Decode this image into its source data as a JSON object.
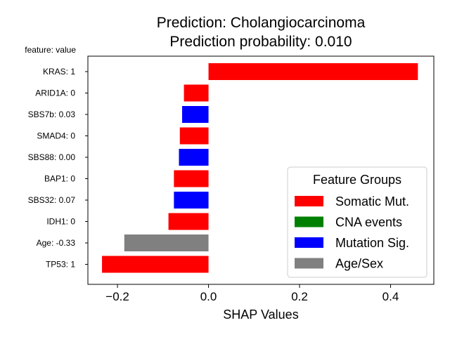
{
  "chart_data": {
    "type": "bar",
    "orientation": "horizontal",
    "title": "Prediction: Cholangiocarcinoma",
    "subtitle": "Prediction probability: 0.010",
    "ylabel_header": "feature: value",
    "xlabel": "SHAP Values",
    "xlim": [
      -0.265,
      0.495
    ],
    "xticks": [
      -0.2,
      0.0,
      0.2,
      0.4
    ],
    "xtick_labels": [
      "−0.2",
      "0.0",
      "0.2",
      "0.4"
    ],
    "grid": false,
    "legend_position": "lower-right",
    "bars": [
      {
        "label": "KRAS: 1",
        "value": 0.46,
        "group": "Somatic Mut."
      },
      {
        "label": "ARID1A: 0",
        "value": -0.054,
        "group": "Somatic Mut."
      },
      {
        "label": "SBS7b: 0.03",
        "value": -0.058,
        "group": "Mutation Sig."
      },
      {
        "label": "SMAD4: 0",
        "value": -0.063,
        "group": "Somatic Mut."
      },
      {
        "label": "SBS88: 0.00",
        "value": -0.065,
        "group": "Mutation Sig."
      },
      {
        "label": "BAP1: 0",
        "value": -0.076,
        "group": "Somatic Mut."
      },
      {
        "label": "SBS32: 0.07",
        "value": -0.076,
        "group": "Mutation Sig."
      },
      {
        "label": "IDH1: 0",
        "value": -0.088,
        "group": "Somatic Mut."
      },
      {
        "label": "Age: -0.33",
        "value": -0.185,
        "group": "Age/Sex"
      },
      {
        "label": "TP53: 1",
        "value": -0.234,
        "group": "Somatic Mut."
      }
    ],
    "legend": {
      "title": "Feature Groups",
      "entries": [
        {
          "name": "Somatic Mut.",
          "color": "#ff0000"
        },
        {
          "name": "CNA events",
          "color": "#008000"
        },
        {
          "name": "Mutation Sig.",
          "color": "#0000ff"
        },
        {
          "name": "Age/Sex",
          "color": "#808080"
        }
      ]
    }
  }
}
